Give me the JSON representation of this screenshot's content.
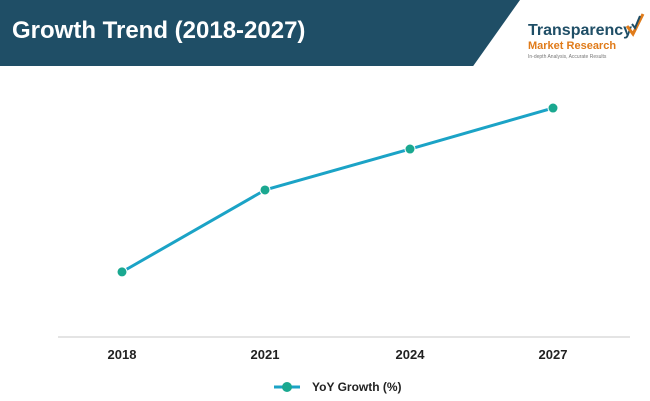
{
  "header": {
    "title": "Growth Trend (2018-2027)"
  },
  "logo": {
    "name_line1": "Transparency",
    "name_line2": "Market Research",
    "tagline": "In-depth Analysis, Accurate Results",
    "brand_color": "#1f4e66",
    "accent_color": "#e07b1a"
  },
  "chart_data": {
    "type": "line",
    "categories": [
      "2018",
      "2021",
      "2024",
      "2027"
    ],
    "series": [
      {
        "name": "YoY Growth (%)",
        "values": [
          2.7,
          6.1,
          7.8,
          9.5
        ],
        "color": "#1ba3c6",
        "marker_color": "#1aa890"
      }
    ],
    "ylim": [
      0,
      10
    ],
    "grid": false,
    "legend_position": "bottom-center"
  }
}
